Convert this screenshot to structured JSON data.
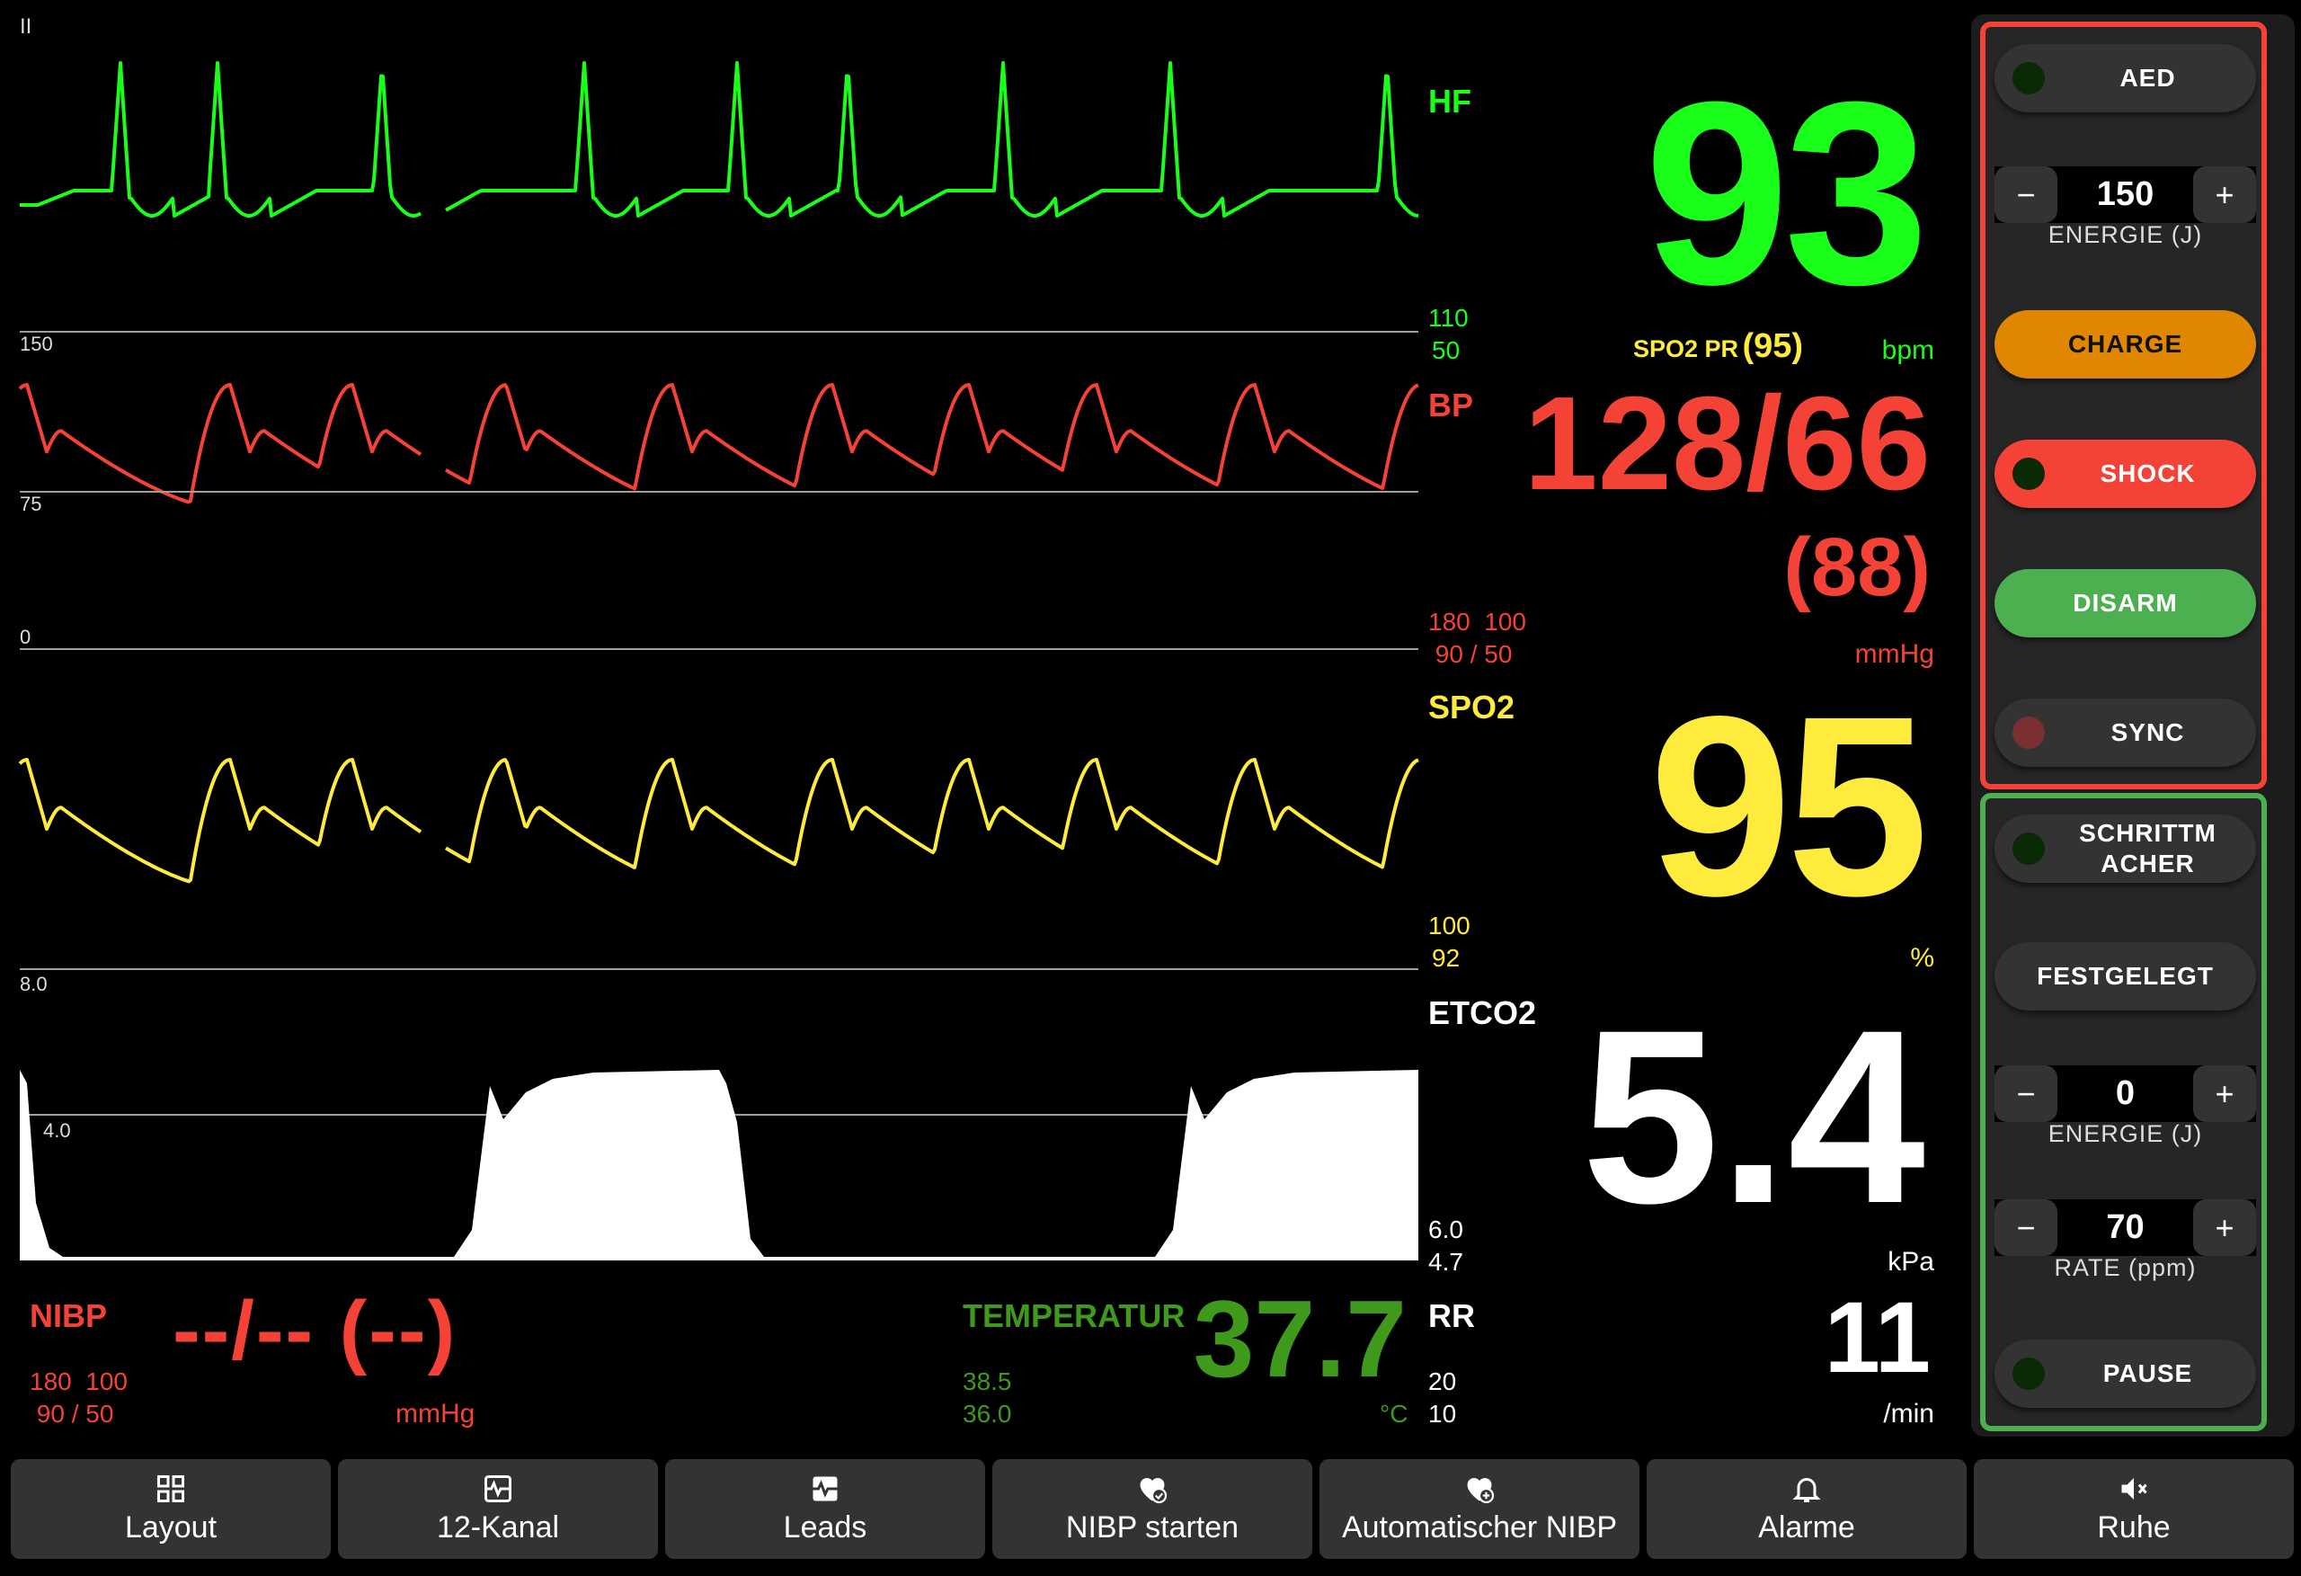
{
  "lead": "II",
  "colors": {
    "hf": "#19ff19",
    "bp": "#f44336",
    "spo2": "#ffeb3b",
    "etco2": "#ffffff",
    "temp": "#3f9a1c",
    "charge": "#e08600",
    "disarm": "#4caf50",
    "shock": "#f44336"
  },
  "hf": {
    "label": "HF",
    "value": "93",
    "alarm_high": "110",
    "alarm_low": "50",
    "unit": "bpm",
    "spo2_pr_label": "SPO2 PR",
    "spo2_pr_value": "(95)"
  },
  "bp": {
    "label": "BP",
    "value": "128/66",
    "mean": "(88)",
    "scale_top": "150",
    "scale_mid": "75",
    "scale_bottom": "0",
    "sys_high": "180",
    "sys_low": "90",
    "dia_high": "100",
    "dia_low": "50",
    "unit": "mmHg"
  },
  "spo2": {
    "label": "SPO2",
    "value": "95",
    "alarm_high": "100",
    "alarm_low": "92",
    "unit": "%"
  },
  "etco2": {
    "label": "ETCO2",
    "value": "5.4",
    "scale_top": "8.0",
    "scale_mid": "4.0",
    "alarm_high": "6.0",
    "alarm_low": "4.7",
    "unit": "kPa"
  },
  "nibp": {
    "label": "NIBP",
    "value": "--/-- (--)",
    "sys_high": "180",
    "sys_low": "90",
    "dia_high": "100",
    "dia_low": "50",
    "unit": "mmHg"
  },
  "temp": {
    "label": "TEMPERATUR",
    "value": "37.7",
    "alarm_high": "38.5",
    "alarm_low": "36.0",
    "unit": "°C"
  },
  "rr": {
    "label": "RR",
    "value": "11",
    "alarm_high": "20",
    "alarm_low": "10",
    "unit": "/min"
  },
  "defib": {
    "aed": "AED",
    "energy_value": "150",
    "energy_label": "ENERGIE (J)",
    "minus": "−",
    "plus": "+",
    "charge": "CHARGE",
    "shock": "SHOCK",
    "disarm": "DISARM",
    "sync": "SYNC"
  },
  "pacer": {
    "pacer": "SCHRITTMACHER",
    "mode": "FESTGELEGT",
    "energy_value": "0",
    "energy_label": "ENERGIE (J)",
    "rate_value": "70",
    "rate_label": "RATE (ppm)",
    "pause": "PAUSE",
    "minus": "−",
    "plus": "+"
  },
  "nav": [
    {
      "label": "Layout",
      "icon": "grid-icon"
    },
    {
      "label": "12-Kanal",
      "icon": "ecg-chart-icon"
    },
    {
      "label": "Leads",
      "icon": "ecg-box-icon"
    },
    {
      "label": "NIBP starten",
      "icon": "heart-check-icon"
    },
    {
      "label": "Automatischer NIBP",
      "icon": "heart-plus-icon"
    },
    {
      "label": "Alarme",
      "icon": "bell-icon"
    },
    {
      "label": "Ruhe",
      "icon": "speaker-mute-icon"
    }
  ]
}
